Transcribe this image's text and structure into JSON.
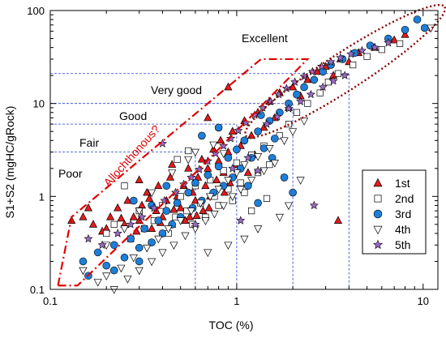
{
  "chart_data": {
    "type": "scatter",
    "xscale": "log",
    "yscale": "log",
    "xlim": [
      0.1,
      12
    ],
    "ylim": [
      0.1,
      100
    ],
    "xlabel": "TOC  (%)",
    "ylabel": "S1+S2 (mgHC/gRock)",
    "xticks": [
      "0.1",
      "1",
      "10"
    ],
    "yticks": [
      "0.1",
      "1",
      "10",
      "100"
    ],
    "grid": false,
    "legend_position": "bottom-right",
    "classes": [
      "Poor",
      "Fair",
      "Good",
      "Very good",
      "Excellent"
    ],
    "annotation": "Allochthonous?",
    "thresholds": {
      "toc": [
        0.6,
        1,
        2,
        4
      ],
      "s1s2": [
        3,
        6,
        10,
        21
      ]
    },
    "series": [
      {
        "name": "1st",
        "marker": "triangle-up",
        "color": "#e41a1c",
        "points": [
          [
            0.13,
            0.55
          ],
          [
            0.15,
            0.6
          ],
          [
            0.17,
            0.5
          ],
          [
            0.2,
            0.45
          ],
          [
            0.21,
            0.6
          ],
          [
            0.23,
            0.75
          ],
          [
            0.25,
            0.5
          ],
          [
            0.26,
            0.9
          ],
          [
            0.28,
            0.6
          ],
          [
            0.3,
            0.55
          ],
          [
            0.31,
            0.8
          ],
          [
            0.33,
            1.1
          ],
          [
            0.35,
            0.45
          ],
          [
            0.37,
            0.7
          ],
          [
            0.38,
            1.3
          ],
          [
            0.4,
            0.6
          ],
          [
            0.42,
            0.9
          ],
          [
            0.44,
            1.6
          ],
          [
            0.45,
            0.5
          ],
          [
            0.48,
            1.0
          ],
          [
            0.5,
            0.75
          ],
          [
            0.52,
            1.3
          ],
          [
            0.55,
            2.0
          ],
          [
            0.56,
            0.6
          ],
          [
            0.58,
            1.1
          ],
          [
            0.6,
            0.9
          ],
          [
            0.62,
            1.6
          ],
          [
            0.65,
            2.5
          ],
          [
            0.66,
            0.7
          ],
          [
            0.68,
            1.3
          ],
          [
            0.7,
            2.0
          ],
          [
            0.72,
            1.0
          ],
          [
            0.75,
            3.2
          ],
          [
            0.78,
            1.5
          ],
          [
            0.8,
            2.4
          ],
          [
            0.82,
            4.0
          ],
          [
            0.85,
            1.8
          ],
          [
            0.9,
            3.0
          ],
          [
            0.95,
            5.0
          ],
          [
            1.0,
            2.2
          ],
          [
            1.05,
            3.5
          ],
          [
            1.1,
            6.5
          ],
          [
            1.2,
            4.5
          ],
          [
            1.3,
            8.0
          ],
          [
            1.4,
            5.5
          ],
          [
            1.5,
            10.5
          ],
          [
            1.6,
            7.0
          ],
          [
            1.7,
            13
          ],
          [
            1.9,
            9.0
          ],
          [
            2.0,
            15
          ],
          [
            2.2,
            12
          ],
          [
            2.4,
            18
          ],
          [
            2.7,
            22
          ],
          [
            3.0,
            25
          ],
          [
            3.3,
            20
          ],
          [
            3.6,
            30
          ],
          [
            4.0,
            28
          ],
          [
            4.5,
            35
          ],
          [
            5.5,
            40
          ],
          [
            7.0,
            48
          ],
          [
            8.0,
            55
          ],
          [
            3.5,
            0.55
          ],
          [
            0.16,
            0.75
          ],
          [
            0.19,
            0.42
          ],
          [
            0.24,
            0.58
          ],
          [
            0.29,
            0.42
          ],
          [
            0.34,
            0.95
          ],
          [
            0.39,
            0.52
          ],
          [
            0.46,
            0.72
          ],
          [
            0.53,
            0.55
          ],
          [
            0.61,
            0.62
          ],
          [
            0.71,
            0.75
          ],
          [
            0.86,
            1.1
          ],
          [
            0.92,
            1.4
          ],
          [
            1.15,
            1.8
          ],
          [
            1.25,
            2.8
          ],
          [
            0.7,
            7.0
          ],
          [
            0.45,
            2.2
          ],
          [
            0.3,
            1.5
          ],
          [
            0.9,
            15
          ]
        ]
      },
      {
        "name": "2nd",
        "marker": "square",
        "color": "#ffffff",
        "points": [
          [
            0.2,
            0.4
          ],
          [
            0.22,
            0.5
          ],
          [
            0.27,
            0.35
          ],
          [
            0.3,
            0.7
          ],
          [
            0.32,
            0.45
          ],
          [
            0.36,
            0.55
          ],
          [
            0.4,
            0.8
          ],
          [
            0.43,
            0.4
          ],
          [
            0.47,
            0.6
          ],
          [
            0.5,
            1.0
          ],
          [
            0.54,
            0.7
          ],
          [
            0.58,
            0.5
          ],
          [
            0.6,
            1.3
          ],
          [
            0.64,
            0.85
          ],
          [
            0.68,
            0.6
          ],
          [
            0.72,
            1.5
          ],
          [
            0.76,
            1.0
          ],
          [
            0.8,
            0.8
          ],
          [
            0.85,
            1.9
          ],
          [
            0.9,
            1.2
          ],
          [
            0.95,
            0.9
          ],
          [
            1.0,
            2.3
          ],
          [
            1.05,
            1.4
          ],
          [
            1.1,
            1.1
          ],
          [
            1.2,
            2.8
          ],
          [
            1.3,
            1.8
          ],
          [
            1.4,
            3.5
          ],
          [
            1.5,
            2.2
          ],
          [
            1.7,
            4.5
          ],
          [
            1.9,
            6.0
          ],
          [
            2.1,
            8.0
          ],
          [
            2.4,
            10
          ],
          [
            2.8,
            13
          ],
          [
            3.1,
            17
          ],
          [
            3.5,
            21
          ],
          [
            4.2,
            26
          ],
          [
            5.0,
            32
          ],
          [
            6.0,
            38
          ],
          [
            7.5,
            44
          ],
          [
            1.2,
            0.7
          ],
          [
            1.45,
            0.95
          ],
          [
            0.48,
            2.5
          ],
          [
            0.25,
            1.3
          ],
          [
            0.55,
            3.1
          ]
        ]
      },
      {
        "name": "3rd",
        "marker": "circle",
        "color": "#1e7fd8",
        "points": [
          [
            0.15,
            0.2
          ],
          [
            0.16,
            0.14
          ],
          [
            0.18,
            0.25
          ],
          [
            0.2,
            0.18
          ],
          [
            0.22,
            0.3
          ],
          [
            0.25,
            0.22
          ],
          [
            0.27,
            0.35
          ],
          [
            0.3,
            0.28
          ],
          [
            0.32,
            0.45
          ],
          [
            0.35,
            0.32
          ],
          [
            0.38,
            0.55
          ],
          [
            0.4,
            0.4
          ],
          [
            0.42,
            0.7
          ],
          [
            0.45,
            0.5
          ],
          [
            0.48,
            0.85
          ],
          [
            0.5,
            0.6
          ],
          [
            0.55,
            1.1
          ],
          [
            0.58,
            0.75
          ],
          [
            0.6,
            1.4
          ],
          [
            0.65,
            0.9
          ],
          [
            0.7,
            1.7
          ],
          [
            0.75,
            1.1
          ],
          [
            0.8,
            2.1
          ],
          [
            0.85,
            1.3
          ],
          [
            0.9,
            2.6
          ],
          [
            0.95,
            1.6
          ],
          [
            1.0,
            3.2
          ],
          [
            1.05,
            2.0
          ],
          [
            1.1,
            4.0
          ],
          [
            1.2,
            2.6
          ],
          [
            1.3,
            5.0
          ],
          [
            1.4,
            3.3
          ],
          [
            1.5,
            6.5
          ],
          [
            1.6,
            4.2
          ],
          [
            1.7,
            8.0
          ],
          [
            1.9,
            10
          ],
          [
            2.1,
            12.5
          ],
          [
            2.3,
            15
          ],
          [
            2.6,
            18
          ],
          [
            2.9,
            22
          ],
          [
            3.2,
            26
          ],
          [
            3.7,
            30
          ],
          [
            4.3,
            35
          ],
          [
            5.2,
            42
          ],
          [
            6.5,
            50
          ],
          [
            8.0,
            62
          ],
          [
            9.3,
            80
          ],
          [
            10.2,
            65
          ],
          [
            1.15,
            1.3
          ],
          [
            1.3,
            0.85
          ],
          [
            1.55,
            2.6
          ],
          [
            1.8,
            1.6
          ],
          [
            2.0,
            1.1
          ],
          [
            0.3,
            0.2
          ],
          [
            0.22,
            0.16
          ],
          [
            0.35,
            0.8
          ],
          [
            0.42,
            1.3
          ],
          [
            0.28,
            0.9
          ],
          [
            0.65,
            4.5
          ],
          [
            0.8,
            5.5
          ],
          [
            1.35,
            7.5
          ]
        ]
      },
      {
        "name": "4th",
        "marker": "triangle-down",
        "color": "#ffffff",
        "points": [
          [
            0.15,
            0.16
          ],
          [
            0.18,
            0.12
          ],
          [
            0.2,
            0.14
          ],
          [
            0.22,
            0.1
          ],
          [
            0.24,
            0.17
          ],
          [
            0.26,
            0.13
          ],
          [
            0.28,
            0.22
          ],
          [
            0.3,
            0.16
          ],
          [
            0.33,
            0.28
          ],
          [
            0.35,
            0.2
          ],
          [
            0.38,
            0.35
          ],
          [
            0.4,
            0.25
          ],
          [
            0.43,
            0.45
          ],
          [
            0.46,
            0.3
          ],
          [
            0.5,
            0.55
          ],
          [
            0.53,
            0.38
          ],
          [
            0.57,
            0.7
          ],
          [
            0.6,
            0.45
          ],
          [
            0.64,
            0.85
          ],
          [
            0.68,
            0.55
          ],
          [
            0.72,
            1.0
          ],
          [
            0.76,
            0.65
          ],
          [
            0.8,
            1.2
          ],
          [
            0.85,
            0.8
          ],
          [
            0.9,
            1.5
          ],
          [
            0.95,
            1.0
          ],
          [
            1.0,
            1.8
          ],
          [
            1.05,
            1.2
          ],
          [
            1.1,
            2.2
          ],
          [
            1.2,
            1.5
          ],
          [
            1.3,
            2.7
          ],
          [
            1.4,
            1.9
          ],
          [
            1.5,
            3.3
          ],
          [
            1.6,
            2.3
          ],
          [
            1.8,
            4.0
          ],
          [
            2.0,
            5.0
          ],
          [
            2.3,
            6.5
          ],
          [
            1.7,
            0.6
          ],
          [
            1.9,
            0.8
          ],
          [
            1.3,
            0.45
          ],
          [
            1.1,
            0.35
          ],
          [
            0.9,
            0.3
          ],
          [
            0.7,
            0.25
          ],
          [
            2.2,
            1.5
          ],
          [
            0.2,
            0.3
          ],
          [
            0.25,
            0.45
          ],
          [
            0.3,
            0.7
          ],
          [
            0.35,
            1.1
          ],
          [
            0.45,
            1.8
          ],
          [
            0.55,
            2.5
          ],
          [
            0.6,
            3.0
          ],
          [
            0.75,
            3.6
          ],
          [
            0.85,
            2.9
          ],
          [
            11.0,
            65
          ]
        ]
      },
      {
        "name": "5th",
        "marker": "star",
        "color": "#9b6ac6",
        "points": [
          [
            0.16,
            0.35
          ],
          [
            0.19,
            0.3
          ],
          [
            0.23,
            0.4
          ],
          [
            0.27,
            0.5
          ],
          [
            0.31,
            0.6
          ],
          [
            0.36,
            0.75
          ],
          [
            0.41,
            0.9
          ],
          [
            0.47,
            1.1
          ],
          [
            0.52,
            1.35
          ],
          [
            0.57,
            1.6
          ],
          [
            0.63,
            1.95
          ],
          [
            0.7,
            2.4
          ],
          [
            0.77,
            2.9
          ],
          [
            0.85,
            3.5
          ],
          [
            0.93,
            4.2
          ],
          [
            1.02,
            5.1
          ],
          [
            1.12,
            6.2
          ],
          [
            1.25,
            7.5
          ],
          [
            1.38,
            9.0
          ],
          [
            1.52,
            10.5
          ],
          [
            1.68,
            12.5
          ],
          [
            1.85,
            14.5
          ],
          [
            2.05,
            17
          ],
          [
            2.3,
            19.5
          ],
          [
            2.55,
            22
          ],
          [
            2.85,
            25
          ],
          [
            3.2,
            28
          ],
          [
            3.6,
            31
          ],
          [
            4.1,
            34
          ],
          [
            4.7,
            37
          ],
          [
            5.5,
            40
          ],
          [
            6.5,
            45
          ],
          [
            1.45,
            6.0
          ],
          [
            1.65,
            7.2
          ],
          [
            1.9,
            8.8
          ],
          [
            2.2,
            10.5
          ],
          [
            2.5,
            12.5
          ],
          [
            2.9,
            15
          ],
          [
            3.3,
            17.5
          ],
          [
            3.8,
            20
          ],
          [
            0.95,
            2.0
          ],
          [
            1.15,
            2.6
          ],
          [
            1.3,
            1.9
          ],
          [
            0.6,
            0.5
          ],
          [
            2.6,
            0.8
          ],
          [
            0.4,
            3.7
          ],
          [
            1.05,
            0.55
          ]
        ]
      }
    ]
  }
}
